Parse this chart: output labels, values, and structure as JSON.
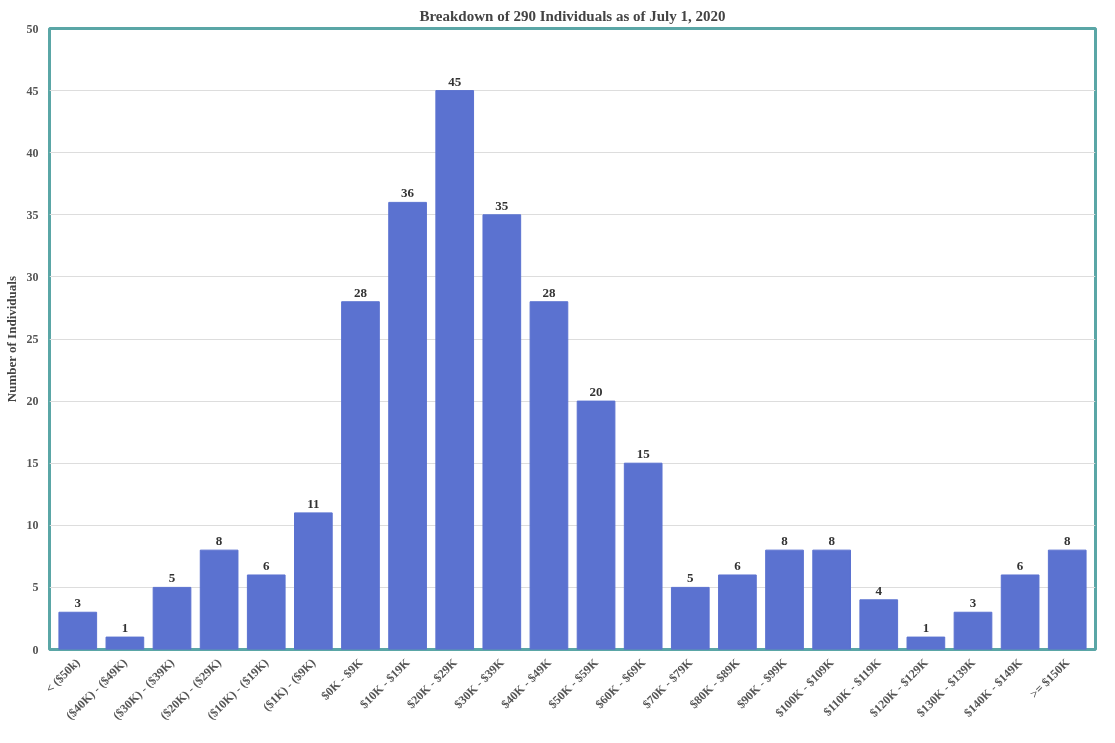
{
  "chart_data": {
    "type": "bar",
    "title": "Breakdown of 290 Individuals as of July 1, 2020",
    "ylabel": "Number of Individuals",
    "categories": [
      "< ($50k)",
      "($40K) - ($49K)",
      "($30K) - ($39K)",
      "($20K) - ($29K)",
      "($10K) - ($19K)",
      "($1K) - ($9K)",
      "$0K - $9K",
      "$10K - $19K",
      "$20K - $29K",
      "$30K - $39K",
      "$40K - $49K",
      "$50K - $59K",
      "$60K - $69K",
      "$70K - $79K",
      "$80K - $89K",
      "$90K - $99K",
      "$100K - $109K",
      "$110K - $119K",
      "$120K - $129K",
      "$130K - $139K",
      "$140K - $149K",
      ">= $150K"
    ],
    "values": [
      3,
      1,
      5,
      8,
      6,
      11,
      28,
      36,
      45,
      35,
      28,
      20,
      15,
      5,
      6,
      8,
      8,
      4,
      1,
      3,
      6,
      8
    ],
    "color": "#5b72d0",
    "ylim": [
      0,
      50
    ],
    "yticks": [
      0,
      5,
      10,
      15,
      20,
      25,
      30,
      35,
      40,
      45,
      50
    ],
    "grid": "y",
    "data_labels": true
  }
}
